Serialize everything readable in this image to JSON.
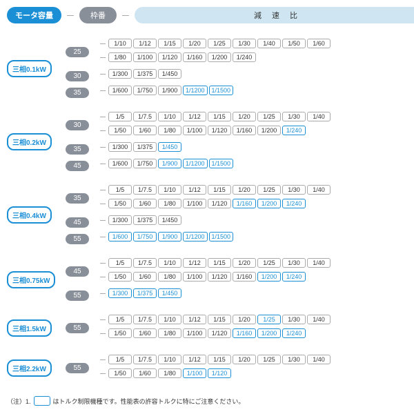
{
  "header": {
    "motor": "モータ容量",
    "frame": "枠番",
    "ratio": "減 速 比"
  },
  "colors": {
    "accent": "#1a8fd6",
    "frame_bg": "#898f99",
    "ratio_header_bg": "#cfe6f2",
    "border_gray": "#aaaaaa",
    "background": "#ffffff"
  },
  "note": {
    "prefix": "（注）1.",
    "text": "はトルク制限機種です。性能表の許容トルクに特にご注意ください。"
  },
  "groups": [
    {
      "motor": "三相0.1kW",
      "frames": [
        {
          "num": "25",
          "lines": [
            [
              {
                "v": "1/10"
              },
              {
                "v": "1/12"
              },
              {
                "v": "1/15"
              },
              {
                "v": "1/20"
              },
              {
                "v": "1/25"
              },
              {
                "v": "1/30"
              },
              {
                "v": "1/40"
              },
              {
                "v": "1/50"
              },
              {
                "v": "1/60"
              }
            ],
            [
              {
                "v": "1/80"
              },
              {
                "v": "1/100"
              },
              {
                "v": "1/120"
              },
              {
                "v": "1/160"
              },
              {
                "v": "1/200"
              },
              {
                "v": "1/240"
              }
            ]
          ]
        },
        {
          "num": "30",
          "lines": [
            [
              {
                "v": "1/300"
              },
              {
                "v": "1/375"
              },
              {
                "v": "1/450"
              }
            ]
          ]
        },
        {
          "num": "35",
          "lines": [
            [
              {
                "v": "1/600"
              },
              {
                "v": "1/750"
              },
              {
                "v": "1/900"
              },
              {
                "v": "1/1200",
                "hl": true
              },
              {
                "v": "1/1500",
                "hl": true
              }
            ]
          ]
        }
      ]
    },
    {
      "motor": "三相0.2kW",
      "frames": [
        {
          "num": "30",
          "lines": [
            [
              {
                "v": "1/5"
              },
              {
                "v": "1/7.5"
              },
              {
                "v": "1/10"
              },
              {
                "v": "1/12"
              },
              {
                "v": "1/15"
              },
              {
                "v": "1/20"
              },
              {
                "v": "1/25"
              },
              {
                "v": "1/30"
              },
              {
                "v": "1/40"
              }
            ],
            [
              {
                "v": "1/50"
              },
              {
                "v": "1/60"
              },
              {
                "v": "1/80"
              },
              {
                "v": "1/100"
              },
              {
                "v": "1/120"
              },
              {
                "v": "1/160"
              },
              {
                "v": "1/200"
              },
              {
                "v": "1/240",
                "hl": true
              }
            ]
          ]
        },
        {
          "num": "35",
          "lines": [
            [
              {
                "v": "1/300"
              },
              {
                "v": "1/375"
              },
              {
                "v": "1/450",
                "hl": true
              }
            ]
          ]
        },
        {
          "num": "45",
          "lines": [
            [
              {
                "v": "1/600"
              },
              {
                "v": "1/750"
              },
              {
                "v": "1/900",
                "hl": true
              },
              {
                "v": "1/1200",
                "hl": true
              },
              {
                "v": "1/1500",
                "hl": true
              }
            ]
          ]
        }
      ]
    },
    {
      "motor": "三相0.4kW",
      "frames": [
        {
          "num": "35",
          "lines": [
            [
              {
                "v": "1/5"
              },
              {
                "v": "1/7.5"
              },
              {
                "v": "1/10"
              },
              {
                "v": "1/12"
              },
              {
                "v": "1/15"
              },
              {
                "v": "1/20"
              },
              {
                "v": "1/25"
              },
              {
                "v": "1/30"
              },
              {
                "v": "1/40"
              }
            ],
            [
              {
                "v": "1/50"
              },
              {
                "v": "1/60"
              },
              {
                "v": "1/80"
              },
              {
                "v": "1/100"
              },
              {
                "v": "1/120"
              },
              {
                "v": "1/160",
                "hl": true
              },
              {
                "v": "1/200",
                "hl": true
              },
              {
                "v": "1/240",
                "hl": true
              }
            ]
          ]
        },
        {
          "num": "45",
          "lines": [
            [
              {
                "v": "1/300"
              },
              {
                "v": "1/375"
              },
              {
                "v": "1/450"
              }
            ]
          ]
        },
        {
          "num": "55",
          "lines": [
            [
              {
                "v": "1/600",
                "hl": true
              },
              {
                "v": "1/750",
                "hl": true
              },
              {
                "v": "1/900",
                "hl": true
              },
              {
                "v": "1/1200",
                "hl": true
              },
              {
                "v": "1/1500",
                "hl": true
              }
            ]
          ]
        }
      ]
    },
    {
      "motor": "三相0.75kW",
      "frames": [
        {
          "num": "45",
          "lines": [
            [
              {
                "v": "1/5"
              },
              {
                "v": "1/7.5"
              },
              {
                "v": "1/10"
              },
              {
                "v": "1/12"
              },
              {
                "v": "1/15"
              },
              {
                "v": "1/20"
              },
              {
                "v": "1/25"
              },
              {
                "v": "1/30"
              },
              {
                "v": "1/40"
              }
            ],
            [
              {
                "v": "1/50"
              },
              {
                "v": "1/60"
              },
              {
                "v": "1/80"
              },
              {
                "v": "1/100"
              },
              {
                "v": "1/120"
              },
              {
                "v": "1/160"
              },
              {
                "v": "1/200",
                "hl": true
              },
              {
                "v": "1/240",
                "hl": true
              }
            ]
          ]
        },
        {
          "num": "55",
          "lines": [
            [
              {
                "v": "1/300",
                "hl": true
              },
              {
                "v": "1/375",
                "hl": true
              },
              {
                "v": "1/450",
                "hl": true
              }
            ]
          ]
        }
      ]
    },
    {
      "motor": "三相1.5kW",
      "frames": [
        {
          "num": "55",
          "lines": [
            [
              {
                "v": "1/5"
              },
              {
                "v": "1/7.5"
              },
              {
                "v": "1/10"
              },
              {
                "v": "1/12"
              },
              {
                "v": "1/15"
              },
              {
                "v": "1/20"
              },
              {
                "v": "1/25",
                "hl": true
              },
              {
                "v": "1/30"
              },
              {
                "v": "1/40"
              }
            ],
            [
              {
                "v": "1/50"
              },
              {
                "v": "1/60"
              },
              {
                "v": "1/80"
              },
              {
                "v": "1/100"
              },
              {
                "v": "1/120"
              },
              {
                "v": "1/160",
                "hl": true
              },
              {
                "v": "1/200",
                "hl": true
              },
              {
                "v": "1/240",
                "hl": true
              }
            ]
          ]
        }
      ]
    },
    {
      "motor": "三相2.2kW",
      "frames": [
        {
          "num": "55",
          "lines": [
            [
              {
                "v": "1/5"
              },
              {
                "v": "1/7.5"
              },
              {
                "v": "1/10"
              },
              {
                "v": "1/12"
              },
              {
                "v": "1/15"
              },
              {
                "v": "1/20"
              },
              {
                "v": "1/25"
              },
              {
                "v": "1/30"
              },
              {
                "v": "1/40"
              }
            ],
            [
              {
                "v": "1/50"
              },
              {
                "v": "1/60"
              },
              {
                "v": "1/80"
              },
              {
                "v": "1/100",
                "hl": true
              },
              {
                "v": "1/120",
                "hl": true
              }
            ]
          ]
        }
      ]
    }
  ]
}
